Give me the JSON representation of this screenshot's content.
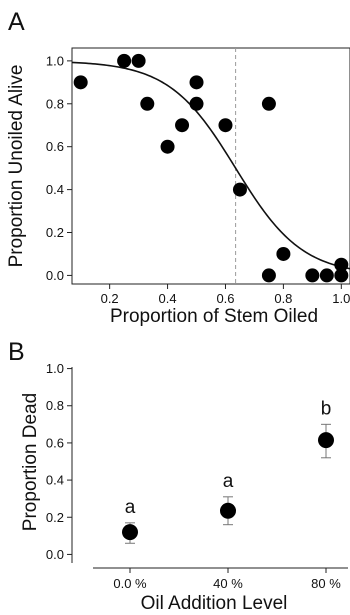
{
  "chart_data": [
    {
      "panel": "A",
      "type": "scatter",
      "title": "",
      "xlabel": "Proportion of Stem Oiled",
      "ylabel": "Proportion Unoiled Alive",
      "xlim": [
        0.07,
        1.03
      ],
      "ylim": [
        -0.04,
        1.06
      ],
      "xticks": [
        0.2,
        0.4,
        0.6,
        0.8,
        1.0
      ],
      "xtick_labels": [
        "0.2",
        "0.4",
        "0.6",
        "0.8",
        "1.0"
      ],
      "yticks": [
        0.0,
        0.2,
        0.4,
        0.6,
        0.8,
        1.0
      ],
      "ytick_labels": [
        "0.0",
        "0.2",
        "0.4",
        "0.6",
        "0.8",
        "1.0"
      ],
      "points": [
        {
          "x": 0.1,
          "y": 0.9
        },
        {
          "x": 0.25,
          "y": 1.0
        },
        {
          "x": 0.3,
          "y": 1.0
        },
        {
          "x": 0.33,
          "y": 0.8
        },
        {
          "x": 0.4,
          "y": 0.6
        },
        {
          "x": 0.45,
          "y": 0.7
        },
        {
          "x": 0.5,
          "y": 0.9
        },
        {
          "x": 0.5,
          "y": 0.8
        },
        {
          "x": 0.6,
          "y": 0.7
        },
        {
          "x": 0.65,
          "y": 0.4
        },
        {
          "x": 0.75,
          "y": 0.8
        },
        {
          "x": 0.75,
          "y": 0.0
        },
        {
          "x": 0.8,
          "y": 0.1
        },
        {
          "x": 0.9,
          "y": 0.0
        },
        {
          "x": 0.95,
          "y": 0.0
        },
        {
          "x": 1.0,
          "y": 0.0
        },
        {
          "x": 1.0,
          "y": 0.05
        }
      ],
      "fit_curve": {
        "type": "logistic",
        "midpoint": 0.635,
        "slope": 8.7,
        "asymptote": 1.0
      },
      "reference_line": {
        "x": 0.635,
        "style": "dashed",
        "color": "#9a9a9a"
      },
      "grid": false,
      "point_color": "#000000"
    },
    {
      "panel": "B",
      "type": "scatter",
      "title": "",
      "xlabel": "Oil Addition Level",
      "ylabel": "Proportion Dead",
      "categories": [
        "0.0 %",
        "40 %",
        "80 %"
      ],
      "ylim": [
        -0.03,
        1.03
      ],
      "yticks": [
        0.0,
        0.2,
        0.4,
        0.6,
        0.8,
        1.0
      ],
      "ytick_labels": [
        "0.0",
        "0.2",
        "0.4",
        "0.6",
        "0.8",
        "1.0"
      ],
      "points": [
        {
          "category": "0.0 %",
          "y": 0.12,
          "err_low": 0.06,
          "err_high": 0.17,
          "letter": "a"
        },
        {
          "category": "40 %",
          "y": 0.235,
          "err_low": 0.16,
          "err_high": 0.31,
          "letter": "a"
        },
        {
          "category": "80 %",
          "y": 0.615,
          "err_low": 0.52,
          "err_high": 0.7,
          "letter": "b"
        }
      ],
      "grid": false,
      "point_color": "#000000",
      "errorbar_color": "#777777"
    }
  ]
}
